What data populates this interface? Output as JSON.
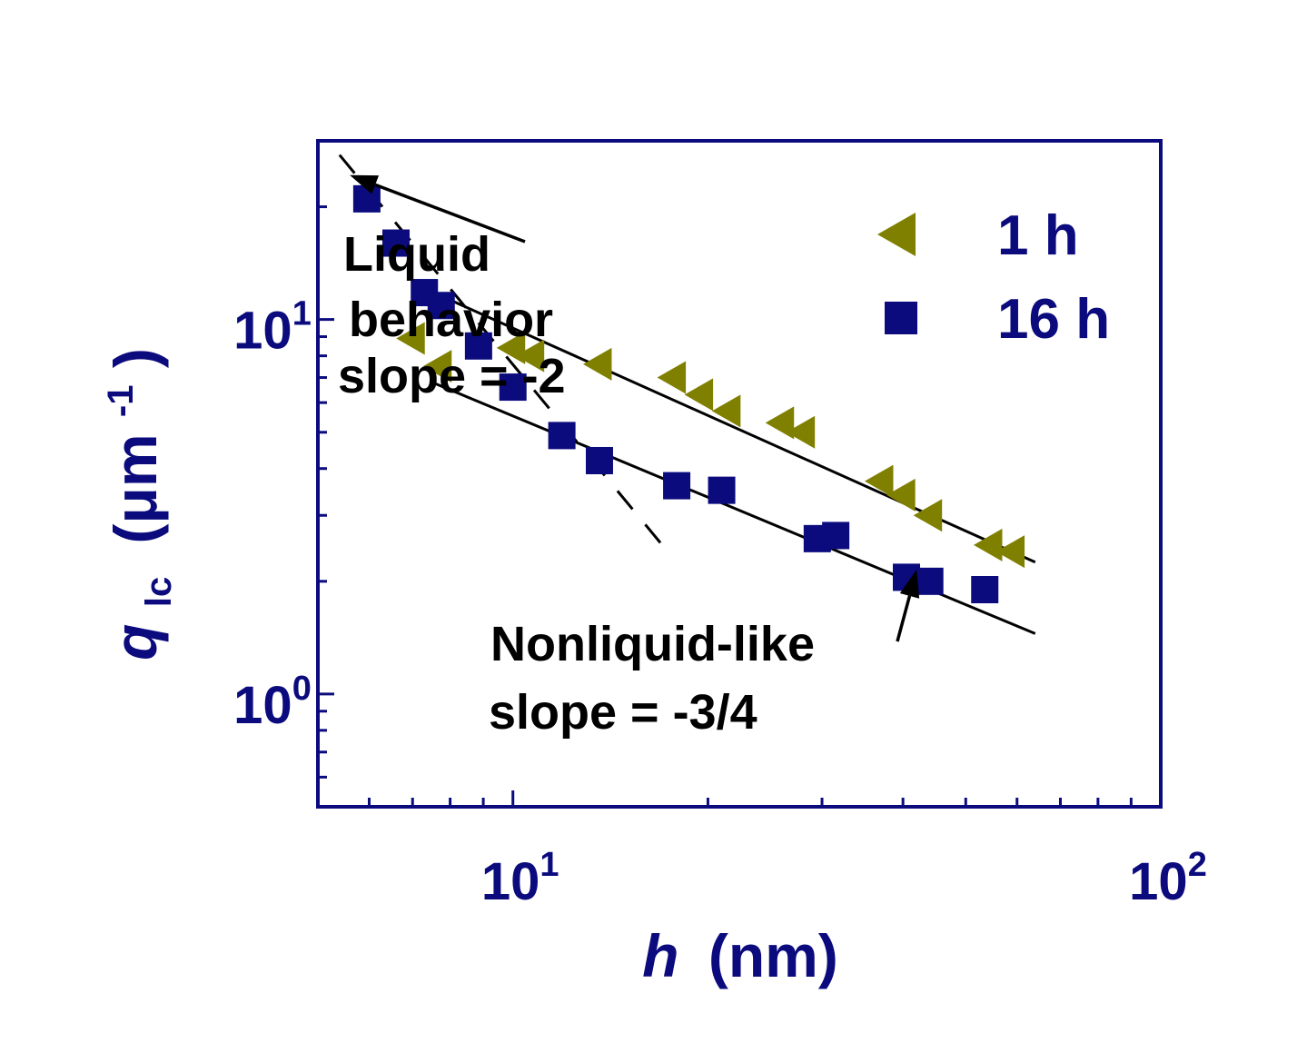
{
  "chart_data": {
    "type": "scatter",
    "xscale": "log",
    "yscale": "log",
    "xlim": [
      5,
      100
    ],
    "ylim": [
      0.5,
      30
    ],
    "xlabel": {
      "main": "h",
      "unit": "(nm)"
    },
    "ylabel": {
      "main": "q",
      "sub": "lc",
      "unit_open": "(μm",
      "sup": "-1",
      "unit_close": ")"
    },
    "xticks": [
      {
        "value": 10,
        "base": "10",
        "exp": "1"
      },
      {
        "value": 100,
        "base": "10",
        "exp": "2"
      }
    ],
    "yticks": [
      {
        "value": 1,
        "base": "10",
        "exp": "0"
      },
      {
        "value": 10,
        "base": "10",
        "exp": "1"
      }
    ],
    "legend": {
      "position": "top-right",
      "entries": [
        {
          "name": "1 h",
          "marker": "triangle-left",
          "color": "#808000"
        },
        {
          "name": "16 h",
          "marker": "square",
          "color": "#0b0b7e"
        }
      ]
    },
    "series": [
      {
        "name": "1 h",
        "marker": "triangle-left",
        "color": "#808000",
        "x": [
          7.0,
          7.7,
          10.0,
          10.7,
          13.6,
          17.7,
          19.5,
          21.5,
          26.0,
          28.0,
          37.0,
          40.0,
          44.0,
          54.5,
          59.0
        ],
        "y": [
          8.9,
          7.5,
          8.4,
          8.0,
          7.6,
          7.0,
          6.3,
          5.7,
          5.3,
          5.0,
          3.7,
          3.4,
          3.0,
          2.5,
          2.4
        ]
      },
      {
        "name": "16 h",
        "marker": "square",
        "color": "#0b0b7e",
        "x": [
          5.95,
          6.6,
          7.3,
          7.75,
          8.85,
          10.0,
          11.9,
          13.6,
          17.9,
          21.0,
          29.5,
          31.5,
          40.5,
          44.0,
          53.5
        ],
        "y": [
          21.0,
          16.0,
          11.8,
          10.9,
          8.5,
          6.6,
          4.9,
          4.2,
          3.6,
          3.5,
          2.6,
          2.65,
          2.05,
          2.0,
          1.9
        ]
      }
    ],
    "fit_lines": [
      {
        "style": "solid",
        "x": [
          7.8,
          64.0
        ],
        "y": [
          11.5,
          2.25
        ]
      },
      {
        "style": "solid",
        "x": [
          7.5,
          64.0
        ],
        "y": [
          6.8,
          1.45
        ]
      },
      {
        "style": "dashed",
        "x": [
          5.4,
          17.0
        ],
        "y": [
          27.5,
          2.5
        ]
      }
    ],
    "annotations": [
      {
        "lines": [
          "Liquid",
          "behavior",
          "slope = -2"
        ],
        "arrow_to": {
          "x": 5.6,
          "y": 24.3
        }
      },
      {
        "lines": [
          "Nonliquid-like",
          "slope = -3/4"
        ],
        "arrow_to": {
          "x": 42.0,
          "y": 2.15
        }
      }
    ]
  }
}
